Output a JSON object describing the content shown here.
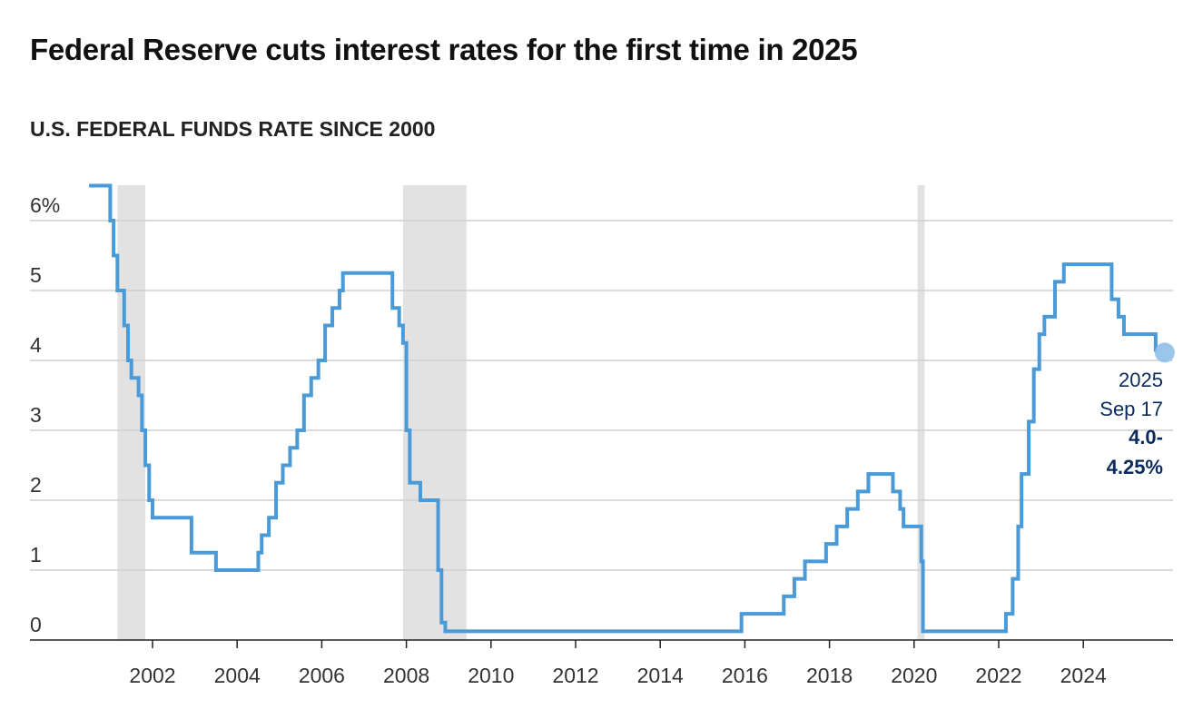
{
  "title": "Federal Reserve cuts interest rates for the first time in 2025",
  "subtitle": "U.S. FEDERAL FUNDS RATE SINCE 2000",
  "colors": {
    "line": "#4a9ad8",
    "recession": "#e2e2e2",
    "grid": "#cfcfcf",
    "annotation": "#0b2a5c",
    "dot": "#8fc0ea"
  },
  "chart_data": {
    "type": "line",
    "step": true,
    "series": [
      {
        "name": "",
        "x": [
          2000.5,
          2001.0,
          2001.08,
          2001.17,
          2001.33,
          2001.42,
          2001.5,
          2001.67,
          2001.75,
          2001.83,
          2001.92,
          2002.0,
          2002.92,
          2003.5,
          2004.5,
          2004.58,
          2004.75,
          2004.92,
          2005.08,
          2005.25,
          2005.42,
          2005.58,
          2005.75,
          2005.92,
          2006.08,
          2006.25,
          2006.42,
          2006.5,
          2007.67,
          2007.83,
          2007.92,
          2008.0,
          2008.08,
          2008.33,
          2008.75,
          2008.83,
          2008.92,
          2015.92,
          2016.92,
          2017.17,
          2017.42,
          2017.92,
          2018.17,
          2018.42,
          2018.67,
          2018.92,
          2019.5,
          2019.67,
          2019.75,
          2020.17,
          2020.21,
          2022.17,
          2022.33,
          2022.46,
          2022.54,
          2022.71,
          2022.83,
          2022.96,
          2023.08,
          2023.33,
          2023.54,
          2024.67,
          2024.83,
          2024.96,
          2025.71
        ],
        "values": [
          6.5,
          6.0,
          5.5,
          5.0,
          4.5,
          4.0,
          3.75,
          3.5,
          3.0,
          2.5,
          2.0,
          1.75,
          1.25,
          1.0,
          1.25,
          1.5,
          1.75,
          2.25,
          2.5,
          2.75,
          3.0,
          3.5,
          3.75,
          4.0,
          4.5,
          4.75,
          5.0,
          5.25,
          4.75,
          4.5,
          4.25,
          3.0,
          2.25,
          2.0,
          1.0,
          0.25,
          0.125,
          0.375,
          0.625,
          0.875,
          1.125,
          1.375,
          1.625,
          1.875,
          2.125,
          2.375,
          2.125,
          1.875,
          1.625,
          1.125,
          0.125,
          0.375,
          0.875,
          1.625,
          2.375,
          3.125,
          3.875,
          4.375,
          4.625,
          5.125,
          5.375,
          4.875,
          4.625,
          4.375,
          4.125
        ]
      }
    ],
    "last_point": {
      "x": 2025.71,
      "y": 4.125
    },
    "recessions": [
      [
        2001.17,
        2001.83
      ],
      [
        2007.92,
        2009.42
      ],
      [
        2020.08,
        2020.25
      ]
    ],
    "xlim": [
      2000,
      2026
    ],
    "ylim": [
      0,
      6.5
    ],
    "yticks": [
      0,
      1,
      2,
      3,
      4,
      5,
      6
    ],
    "ytick_labels": [
      "0",
      "1",
      "2",
      "3",
      "4",
      "5",
      "6%"
    ],
    "xticks": [
      2002,
      2004,
      2006,
      2008,
      2010,
      2012,
      2014,
      2016,
      2018,
      2020,
      2022,
      2024
    ],
    "xtick_labels": [
      "2002",
      "2004",
      "2006",
      "2008",
      "2010",
      "2012",
      "2014",
      "2016",
      "2018",
      "2020",
      "2022",
      "2024"
    ],
    "grid": "horizontal",
    "annotation": {
      "line1": "2025",
      "line2": "Sep 17",
      "line3": "4.0-",
      "line4": "4.25%"
    }
  }
}
